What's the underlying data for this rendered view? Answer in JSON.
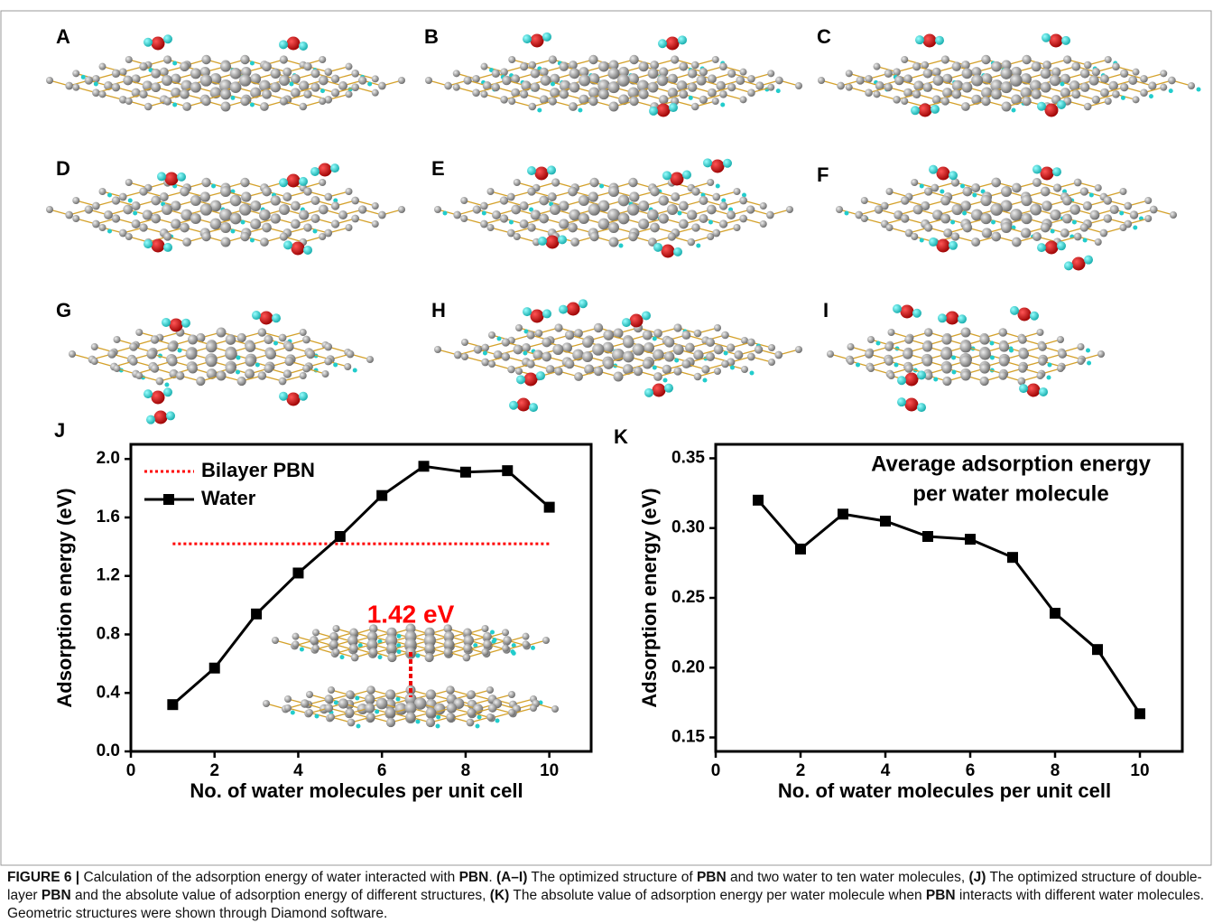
{
  "panels": [
    "A",
    "B",
    "C",
    "D",
    "E",
    "F",
    "G",
    "H",
    "I"
  ],
  "chart_data": [
    {
      "type": "line",
      "panel_label": "J",
      "x": [
        1,
        2,
        3,
        4,
        5,
        6,
        7,
        8,
        9,
        10
      ],
      "series": [
        {
          "name": "Water",
          "color": "#000000",
          "values": [
            0.32,
            0.57,
            0.94,
            1.22,
            1.47,
            1.75,
            1.95,
            1.91,
            1.92,
            1.67
          ]
        }
      ],
      "reference_line": {
        "name": "Bilayer PBN",
        "value": 1.42,
        "color": "#ff0000"
      },
      "annotation": "1.42 eV",
      "xlabel": "No. of water molecules per unit cell",
      "ylabel": "Adsorption energy (eV)",
      "xlim": [
        0,
        11
      ],
      "ylim": [
        0,
        2.1
      ],
      "xticks": [
        0,
        2,
        4,
        6,
        8,
        10
      ],
      "yticks": [
        {
          "value": 0,
          "label": "0.0"
        },
        0.4,
        0.8,
        1.2,
        1.6,
        {
          "value": 2,
          "label": "2.0"
        }
      ],
      "legend": "upper left"
    },
    {
      "type": "line",
      "panel_label": "K",
      "x": [
        1,
        2,
        3,
        4,
        5,
        6,
        7,
        8,
        9,
        10
      ],
      "series": [
        {
          "color": "#000000",
          "values": [
            0.32,
            0.285,
            0.31,
            0.305,
            0.294,
            0.292,
            0.279,
            0.239,
            0.213,
            0.167
          ]
        }
      ],
      "annotation_lines": [
        "Average adsorption energy",
        "per water molecule"
      ],
      "xlabel": "No. of water molecules per unit cell",
      "ylabel": "Adsorption energy (eV)",
      "xlim": [
        0,
        11
      ],
      "ylim": [
        0.14,
        0.36
      ],
      "xticks": [
        0,
        2,
        4,
        6,
        8,
        10
      ],
      "yticks": [
        0.15,
        {
          "value": 0.2,
          "label": "0.20"
        },
        0.25,
        {
          "value": 0.3,
          "label": "0.30"
        },
        0.35
      ]
    }
  ],
  "caption": [
    {
      "text": "FIGURE 6 | ",
      "bold": true
    },
    {
      "text": "Calculation of the adsorption energy of water interacted with ",
      "bold": false
    },
    {
      "text": "PBN",
      "bold": true
    },
    {
      "text": ". ",
      "bold": false
    },
    {
      "text": "(A–I)",
      "bold": true
    },
    {
      "text": " The optimized structure of ",
      "bold": false
    },
    {
      "text": "PBN",
      "bold": true
    },
    {
      "text": " and two water to ten water molecules, ",
      "bold": false
    },
    {
      "text": "(J)",
      "bold": true
    },
    {
      "text": " The optimized structure of double-layer ",
      "bold": false
    },
    {
      "text": "PBN",
      "bold": true
    },
    {
      "text": " and the absolute value of adsorption energy of different structures, ",
      "bold": false
    },
    {
      "text": "(K)",
      "bold": true
    },
    {
      "text": " The absolute value of adsorption energy per water molecule when ",
      "bold": false
    },
    {
      "text": "PBN",
      "bold": true
    },
    {
      "text": " interacts with different water molecules. Geometric structures were shown through Diamond software.",
      "bold": false
    }
  ]
}
